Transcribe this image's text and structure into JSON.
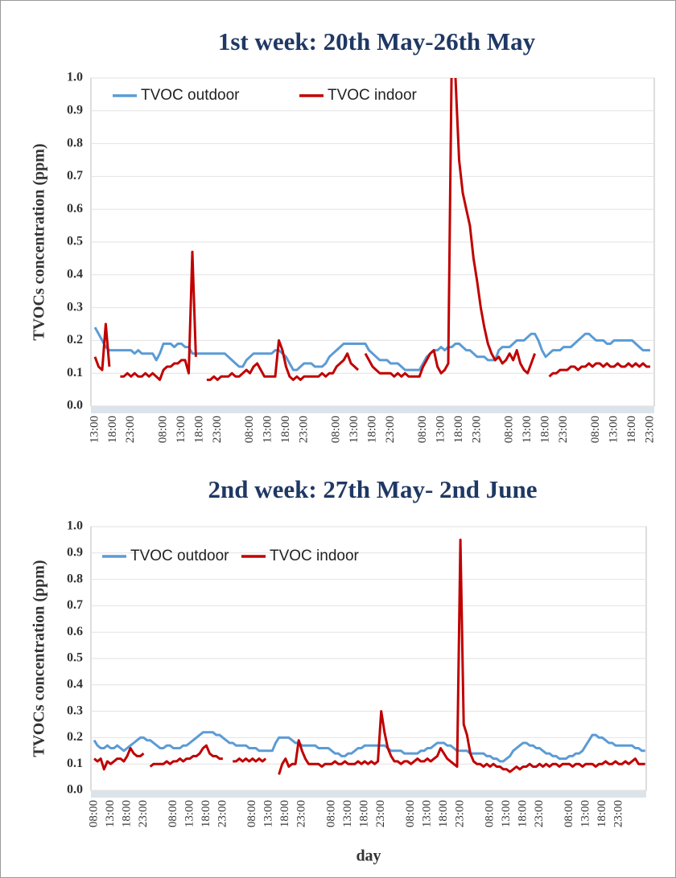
{
  "chart_data": [
    {
      "type": "line",
      "title": "1st week: 20th May-26th May",
      "y_label": "TVOCs concentration (ppm)",
      "categories": [
        "13:00",
        null,
        null,
        null,
        null,
        "18:00",
        null,
        null,
        null,
        null,
        "23:00",
        null,
        null,
        null,
        null,
        null,
        null,
        null,
        null,
        "08:00",
        null,
        null,
        null,
        null,
        "13:00",
        null,
        null,
        null,
        null,
        "18:00",
        null,
        null,
        null,
        null,
        "23:00",
        null,
        null,
        null,
        null,
        null,
        null,
        null,
        null,
        "08:00",
        null,
        null,
        null,
        null,
        "13:00",
        null,
        null,
        null,
        null,
        "18:00",
        null,
        null,
        null,
        null,
        "23:00",
        null,
        null,
        null,
        null,
        null,
        null,
        null,
        null,
        "08:00",
        null,
        null,
        null,
        null,
        "13:00",
        null,
        null,
        null,
        null,
        "18:00",
        null,
        null,
        null,
        null,
        "23:00",
        null,
        null,
        null,
        null,
        null,
        null,
        null,
        null,
        "08:00",
        null,
        null,
        null,
        null,
        "13:00",
        null,
        null,
        null,
        null,
        "18:00",
        null,
        null,
        null,
        null,
        "23:00",
        null,
        null,
        null,
        null,
        null,
        null,
        null,
        null,
        "08:00",
        null,
        null,
        null,
        null,
        "13:00",
        null,
        null,
        null,
        null,
        "18:00",
        null,
        null,
        null,
        null,
        "23:00",
        null,
        null,
        null,
        null,
        null,
        null,
        null,
        null,
        "08:00",
        null,
        null,
        null,
        null,
        "13:00",
        null,
        null,
        null,
        null,
        "18:00",
        null,
        null,
        null,
        null,
        "23:00"
      ],
      "series": [
        {
          "name": "TVOC outdoor",
          "color": "#5b9bd5",
          "values": [
            0.24,
            0.22,
            0.2,
            0.18,
            0.17,
            0.17,
            0.17,
            0.17,
            0.17,
            0.17,
            0.17,
            0.16,
            0.17,
            0.16,
            0.16,
            0.16,
            0.16,
            0.14,
            0.16,
            0.19,
            0.19,
            0.19,
            0.18,
            0.19,
            0.19,
            0.18,
            0.18,
            0.16,
            0.16,
            0.16,
            0.16,
            0.16,
            0.16,
            0.16,
            0.16,
            0.16,
            0.16,
            0.15,
            0.14,
            0.13,
            0.12,
            0.12,
            0.14,
            0.15,
            0.16,
            0.16,
            0.16,
            0.16,
            0.16,
            0.16,
            0.17,
            0.17,
            0.16,
            0.15,
            0.13,
            0.11,
            0.11,
            0.12,
            0.13,
            0.13,
            0.13,
            0.12,
            0.12,
            0.12,
            0.13,
            0.15,
            0.16,
            0.17,
            0.18,
            0.19,
            0.19,
            0.19,
            0.19,
            0.19,
            0.19,
            0.19,
            0.17,
            0.16,
            0.15,
            0.14,
            0.14,
            0.14,
            0.13,
            0.13,
            0.13,
            0.12,
            0.11,
            0.11,
            0.11,
            0.11,
            0.11,
            0.13,
            0.15,
            0.16,
            0.17,
            0.17,
            0.18,
            0.17,
            0.18,
            0.18,
            0.19,
            0.19,
            0.18,
            0.17,
            0.17,
            0.16,
            0.15,
            0.15,
            0.15,
            0.14,
            0.14,
            0.14,
            0.17,
            0.18,
            0.18,
            0.18,
            0.19,
            0.2,
            0.2,
            0.2,
            0.21,
            0.22,
            0.22,
            0.2,
            0.17,
            0.15,
            0.16,
            0.17,
            0.17,
            0.17,
            0.18,
            0.18,
            0.18,
            0.19,
            0.2,
            0.21,
            0.22,
            0.22,
            0.21,
            0.2,
            0.2,
            0.2,
            0.19,
            0.19,
            0.2,
            0.2,
            0.2,
            0.2,
            0.2,
            0.2,
            0.19,
            0.18,
            0.17,
            0.17,
            0.17
          ]
        },
        {
          "name": "TVOC indoor",
          "color": "#c00000",
          "values": [
            0.15,
            0.12,
            0.11,
            0.25,
            0.12,
            null,
            null,
            0.09,
            0.09,
            0.1,
            0.09,
            0.1,
            0.09,
            0.09,
            0.1,
            0.09,
            0.1,
            0.09,
            0.08,
            0.11,
            0.12,
            0.12,
            0.13,
            0.13,
            0.14,
            0.14,
            0.1,
            0.47,
            0.15,
            null,
            null,
            0.08,
            0.08,
            0.09,
            0.08,
            0.09,
            0.09,
            0.09,
            0.1,
            0.09,
            0.09,
            0.1,
            0.11,
            0.1,
            0.12,
            0.13,
            0.11,
            0.09,
            0.09,
            0.09,
            0.09,
            0.2,
            0.17,
            0.12,
            0.09,
            0.08,
            0.09,
            0.08,
            0.09,
            0.09,
            0.09,
            0.09,
            0.09,
            0.1,
            0.09,
            0.1,
            0.1,
            0.12,
            0.13,
            0.14,
            0.16,
            0.13,
            0.12,
            0.11,
            null,
            0.16,
            0.14,
            0.12,
            0.11,
            0.1,
            0.1,
            0.1,
            0.1,
            0.09,
            0.1,
            0.09,
            0.1,
            0.09,
            0.09,
            0.09,
            0.09,
            0.12,
            0.14,
            0.16,
            0.17,
            0.12,
            0.1,
            0.11,
            0.13,
            1.1,
            1.0,
            0.75,
            0.65,
            0.6,
            0.55,
            0.45,
            0.38,
            0.3,
            0.24,
            0.19,
            0.16,
            0.14,
            0.15,
            0.13,
            0.14,
            0.16,
            0.14,
            0.17,
            0.13,
            0.11,
            0.1,
            0.13,
            0.16,
            null,
            null,
            null,
            0.09,
            0.1,
            0.1,
            0.11,
            0.11,
            0.11,
            0.12,
            0.12,
            0.11,
            0.12,
            0.12,
            0.13,
            0.12,
            0.13,
            0.13,
            0.12,
            0.13,
            0.12,
            0.12,
            0.13,
            0.12,
            0.12,
            0.13,
            0.12,
            0.13,
            0.12,
            0.13,
            0.12,
            0.12
          ]
        }
      ],
      "ylim": [
        0,
        1
      ],
      "yticks": [
        {
          "value": 0,
          "label": "0.0"
        },
        0.1,
        0.2,
        0.3,
        0.4,
        0.5,
        0.6,
        0.7,
        0.8,
        0.9,
        {
          "value": 1,
          "label": "1.0"
        }
      ],
      "grid": true,
      "legend": "top-left"
    },
    {
      "type": "line",
      "title": "2nd week: 27th May- 2nd June",
      "y_label": "TVOCs concentration (ppm)",
      "x_label": "day",
      "categories": [
        "08:00",
        null,
        null,
        null,
        null,
        "13:00",
        null,
        null,
        null,
        null,
        "18:00",
        null,
        null,
        null,
        null,
        "23:00",
        null,
        null,
        null,
        null,
        null,
        null,
        null,
        null,
        "08:00",
        null,
        null,
        null,
        null,
        "13:00",
        null,
        null,
        null,
        null,
        "18:00",
        null,
        null,
        null,
        null,
        "23:00",
        null,
        null,
        null,
        null,
        null,
        null,
        null,
        null,
        "08:00",
        null,
        null,
        null,
        null,
        "13:00",
        null,
        null,
        null,
        null,
        "18:00",
        null,
        null,
        null,
        null,
        "23:00",
        null,
        null,
        null,
        null,
        null,
        null,
        null,
        null,
        "08:00",
        null,
        null,
        null,
        null,
        "13:00",
        null,
        null,
        null,
        null,
        "18:00",
        null,
        null,
        null,
        null,
        "23:00",
        null,
        null,
        null,
        null,
        null,
        null,
        null,
        null,
        "08:00",
        null,
        null,
        null,
        null,
        "13:00",
        null,
        null,
        null,
        null,
        "18:00",
        null,
        null,
        null,
        null,
        "23:00",
        null,
        null,
        null,
        null,
        null,
        null,
        null,
        null,
        "08:00",
        null,
        null,
        null,
        null,
        "13:00",
        null,
        null,
        null,
        null,
        "18:00",
        null,
        null,
        null,
        null,
        "23:00",
        null,
        null,
        null,
        null,
        null,
        null,
        null,
        null,
        "08:00",
        null,
        null,
        null,
        null,
        "13:00",
        null,
        null,
        null,
        null,
        "18:00",
        null,
        null,
        null,
        null,
        "23:00",
        null,
        null,
        null,
        null,
        null,
        null,
        null,
        null
      ],
      "series": [
        {
          "name": "TVOC outdoor",
          "color": "#5b9bd5",
          "values": [
            0.19,
            0.17,
            0.16,
            0.16,
            0.17,
            0.16,
            0.16,
            0.17,
            0.16,
            0.15,
            0.16,
            0.17,
            0.18,
            0.19,
            0.2,
            0.2,
            0.19,
            0.19,
            0.18,
            0.17,
            0.16,
            0.16,
            0.17,
            0.17,
            0.16,
            0.16,
            0.16,
            0.17,
            0.17,
            0.18,
            0.19,
            0.2,
            0.21,
            0.22,
            0.22,
            0.22,
            0.22,
            0.21,
            0.21,
            0.2,
            0.19,
            0.18,
            0.18,
            0.17,
            0.17,
            0.17,
            0.17,
            0.16,
            0.16,
            0.16,
            0.15,
            0.15,
            0.15,
            0.15,
            0.15,
            0.18,
            0.2,
            0.2,
            0.2,
            0.2,
            0.19,
            0.18,
            0.18,
            0.17,
            0.17,
            0.17,
            0.17,
            0.17,
            0.16,
            0.16,
            0.16,
            0.16,
            0.15,
            0.14,
            0.14,
            0.13,
            0.13,
            0.14,
            0.14,
            0.15,
            0.16,
            0.16,
            0.17,
            0.17,
            0.17,
            0.17,
            0.17,
            0.17,
            0.17,
            0.16,
            0.15,
            0.15,
            0.15,
            0.15,
            0.14,
            0.14,
            0.14,
            0.14,
            0.14,
            0.15,
            0.15,
            0.16,
            0.16,
            0.17,
            0.18,
            0.18,
            0.18,
            0.17,
            0.17,
            0.16,
            0.15,
            0.15,
            0.15,
            0.15,
            0.14,
            0.14,
            0.14,
            0.14,
            0.14,
            0.13,
            0.13,
            0.12,
            0.12,
            0.11,
            0.11,
            0.12,
            0.13,
            0.15,
            0.16,
            0.17,
            0.18,
            0.18,
            0.17,
            0.17,
            0.16,
            0.16,
            0.15,
            0.14,
            0.14,
            0.13,
            0.13,
            0.12,
            0.12,
            0.12,
            0.13,
            0.13,
            0.14,
            0.14,
            0.15,
            0.17,
            0.19,
            0.21,
            0.21,
            0.2,
            0.2,
            0.19,
            0.18,
            0.18,
            0.17,
            0.17,
            0.17,
            0.17,
            0.17,
            0.17,
            0.16,
            0.16,
            0.15,
            0.15
          ]
        },
        {
          "name": "TVOC indoor",
          "color": "#c00000",
          "values": [
            0.12,
            0.11,
            0.12,
            0.08,
            0.11,
            0.1,
            0.11,
            0.12,
            0.12,
            0.11,
            0.13,
            0.16,
            0.14,
            0.13,
            0.13,
            0.14,
            null,
            0.09,
            0.1,
            0.1,
            0.1,
            0.1,
            0.11,
            0.1,
            0.11,
            0.11,
            0.12,
            0.11,
            0.12,
            0.12,
            0.13,
            0.13,
            0.14,
            0.16,
            0.17,
            0.14,
            0.13,
            0.13,
            0.12,
            0.12,
            null,
            null,
            0.11,
            0.11,
            0.12,
            0.11,
            0.12,
            0.11,
            0.12,
            0.11,
            0.12,
            0.11,
            0.12,
            null,
            null,
            null,
            0.06,
            0.1,
            0.12,
            0.09,
            0.1,
            0.1,
            0.19,
            0.15,
            0.12,
            0.1,
            0.1,
            0.1,
            0.1,
            0.09,
            0.1,
            0.1,
            0.1,
            0.11,
            0.1,
            0.1,
            0.11,
            0.1,
            0.1,
            0.1,
            0.11,
            0.1,
            0.11,
            0.1,
            0.11,
            0.1,
            0.11,
            0.3,
            0.22,
            0.16,
            0.13,
            0.11,
            0.11,
            0.1,
            0.11,
            0.11,
            0.1,
            0.11,
            0.12,
            0.11,
            0.11,
            0.12,
            0.11,
            0.12,
            0.13,
            0.16,
            0.14,
            0.12,
            0.11,
            0.1,
            0.09,
            0.95,
            0.25,
            0.21,
            0.14,
            0.11,
            0.1,
            0.1,
            0.09,
            0.1,
            0.09,
            0.1,
            0.09,
            0.09,
            0.08,
            0.08,
            0.07,
            0.08,
            0.09,
            0.08,
            0.09,
            0.09,
            0.1,
            0.09,
            0.09,
            0.1,
            0.09,
            0.1,
            0.09,
            0.1,
            0.1,
            0.09,
            0.1,
            0.1,
            0.1,
            0.09,
            0.1,
            0.1,
            0.09,
            0.1,
            0.1,
            0.1,
            0.09,
            0.1,
            0.1,
            0.11,
            0.1,
            0.1,
            0.11,
            0.1,
            0.1,
            0.11,
            0.1,
            0.11,
            0.12,
            0.1,
            0.1,
            0.1
          ]
        }
      ],
      "ylim": [
        0,
        1
      ],
      "yticks": [
        {
          "value": 0,
          "label": "0.0"
        },
        0.1,
        0.2,
        0.3,
        0.4,
        0.5,
        0.6,
        0.7,
        0.8,
        0.9,
        {
          "value": 1,
          "label": "1.0"
        }
      ],
      "grid": true,
      "legend": "top-left"
    }
  ]
}
